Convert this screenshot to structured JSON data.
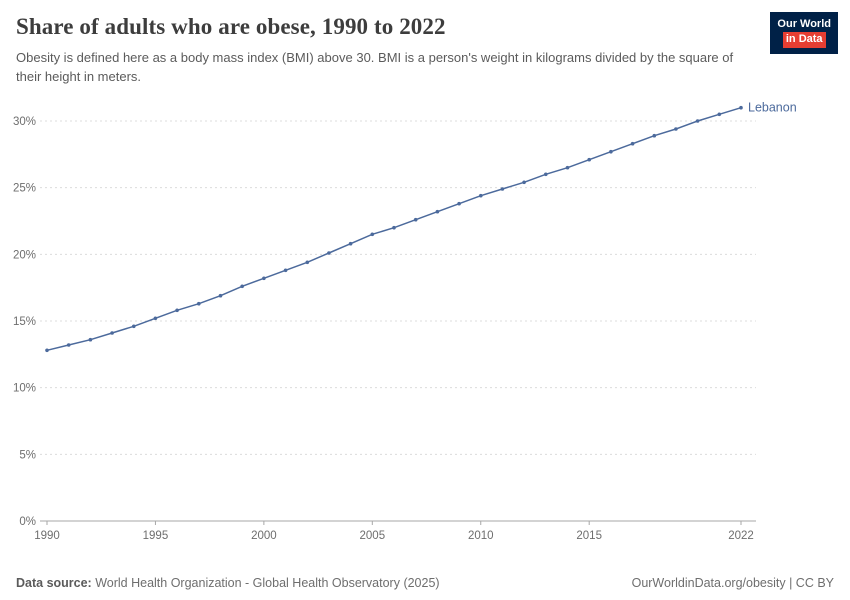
{
  "header": {
    "title": "Share of adults who are obese, 1990 to 2022",
    "subtitle": "Obesity is defined here as a body mass index (BMI) above 30. BMI is a person's weight in kilograms divided by the square of their height in meters.",
    "logo": {
      "line1": "Our World",
      "line2": "in Data",
      "bg": "#002147",
      "accent": "#e63e32"
    }
  },
  "chart_data": {
    "type": "line",
    "title": "Share of adults who are obese, 1990 to 2022",
    "xlabel": "",
    "ylabel": "",
    "xlim": [
      1990,
      2022
    ],
    "ylim": [
      0,
      31.5
    ],
    "x_ticks": [
      1990,
      1995,
      2000,
      2005,
      2010,
      2015,
      2022
    ],
    "y_ticks": [
      0,
      5,
      10,
      15,
      20,
      25,
      30
    ],
    "y_tick_suffix": "%",
    "grid": "dashed-horizontal",
    "end_label": "Lebanon",
    "series": [
      {
        "name": "Lebanon",
        "color": "#4C6A9C",
        "x": [
          1990,
          1991,
          1992,
          1993,
          1994,
          1995,
          1996,
          1997,
          1998,
          1999,
          2000,
          2001,
          2002,
          2003,
          2004,
          2005,
          2006,
          2007,
          2008,
          2009,
          2010,
          2011,
          2012,
          2013,
          2014,
          2015,
          2016,
          2017,
          2018,
          2019,
          2020,
          2021,
          2022
        ],
        "values": [
          12.8,
          13.2,
          13.6,
          14.1,
          14.6,
          15.2,
          15.8,
          16.3,
          16.9,
          17.6,
          18.2,
          18.8,
          19.4,
          20.1,
          20.8,
          21.5,
          22.0,
          22.6,
          23.2,
          23.8,
          24.4,
          24.9,
          25.4,
          26.0,
          26.5,
          27.1,
          27.7,
          28.3,
          28.9,
          29.4,
          30.0,
          30.5,
          31.0
        ]
      }
    ]
  },
  "footer": {
    "source_label": "Data source:",
    "source_text": " World Health Organization - Global Health Observatory (2025)",
    "right_text": "OurWorldinData.org/obesity | CC BY"
  }
}
